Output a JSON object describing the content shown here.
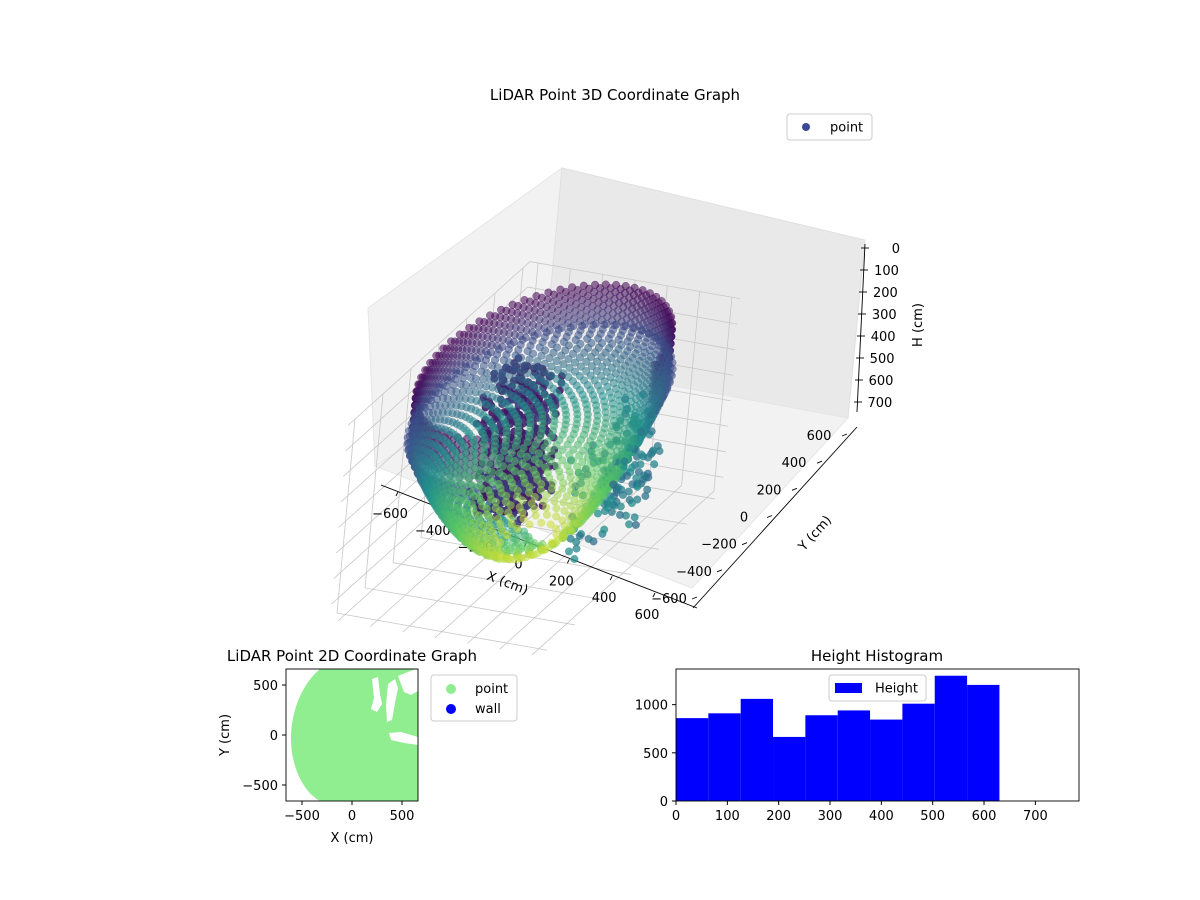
{
  "chart_data": [
    {
      "type": "scatter",
      "projection": "3d",
      "title": "LiDAR Point 3D Coordinate Graph",
      "xlabel": "X (cm)",
      "ylabel": "Y (cm)",
      "zlabel": "H (cm)",
      "xticks": [
        "−600",
        "−400",
        "−200",
        "0",
        "200",
        "400",
        "600"
      ],
      "yticks": [
        "−600",
        "−400",
        "−200",
        "0",
        "200",
        "400",
        "600"
      ],
      "zticks": [
        "0",
        "100",
        "200",
        "300",
        "400",
        "500",
        "600",
        "700"
      ],
      "xlim": [
        -650,
        650
      ],
      "ylim": [
        -650,
        650
      ],
      "zlim": [
        0,
        760
      ],
      "z_inverted": true,
      "grid": true,
      "colormap": "viridis",
      "legend": {
        "position": "top-right",
        "entries": [
          {
            "label": "point",
            "color": "#3b4994"
          }
        ]
      },
      "series": [
        {
          "name": "point",
          "shape": "dome: wall ring radius ~600 near H 0–200, sloping floor to H ~700 near center, cluster near H 50–550"
        }
      ]
    },
    {
      "type": "scatter",
      "title": "LiDAR Point 2D Coordinate Graph",
      "xlabel": "X (cm)",
      "ylabel": "Y (cm)",
      "xticks": [
        "−500",
        "0",
        "500"
      ],
      "yticks": [
        "−500",
        "0",
        "500"
      ],
      "xlim": [
        -660,
        660
      ],
      "ylim": [
        -660,
        660
      ],
      "legend": {
        "position": "outside-right",
        "entries": [
          {
            "label": "point",
            "color": "#90ee90"
          },
          {
            "label": "wall",
            "color": "#0000ff"
          }
        ]
      }
    },
    {
      "type": "bar",
      "subtype": "histogram",
      "title": "Height Histogram",
      "xticks": [
        "0",
        "100",
        "200",
        "300",
        "400",
        "500",
        "600",
        "700"
      ],
      "yticks": [
        "0",
        "500",
        "1000"
      ],
      "xlim": [
        0,
        785
      ],
      "ylim": [
        0,
        1370
      ],
      "bin_edges": [
        0,
        63,
        126,
        189,
        252,
        315,
        378,
        441,
        504,
        567,
        630
      ],
      "series": [
        {
          "name": "Height",
          "color": "#0000ff",
          "values": [
            860,
            910,
            1060,
            665,
            890,
            940,
            845,
            1010,
            1300,
            1205
          ]
        }
      ],
      "legend": {
        "position": "upper-center",
        "entries": [
          {
            "label": "Height",
            "color": "#0000ff"
          }
        ]
      }
    }
  ]
}
